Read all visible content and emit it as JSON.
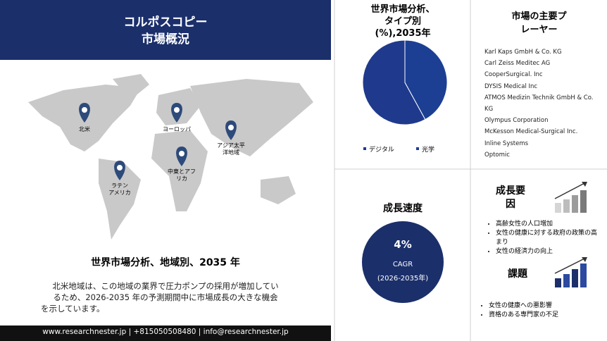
{
  "header": {
    "title": [
      "コルポスコピー",
      "市場概況"
    ]
  },
  "map": {
    "regions": [
      {
        "label": [
          "北米"
        ]
      },
      {
        "label": [
          "ヨーロッパ"
        ]
      },
      {
        "label": [
          "アジア太平",
          "洋地域"
        ]
      },
      {
        "label": [
          "中東とアフ",
          "リカ"
        ]
      },
      {
        "label": [
          "ラテン",
          "アメリカ"
        ]
      }
    ]
  },
  "regional": {
    "title": "世界市場分析、地域別、2035 年",
    "text": [
      "北米地域は、この地域の業界で圧力ポンプの採用が増加してい",
      "るため、2026-2035 年の予測期間中に市場成長の大きな機会",
      "を示しています。"
    ]
  },
  "footer": "www.researchnester.jp | +815050508480 | info@researchnester.jp",
  "chart_data": {
    "type": "pie",
    "title": [
      "世界市場分析、",
      "タイプ別",
      "(%),2035年"
    ],
    "categories": [
      "デジタル",
      "光学"
    ],
    "values": [
      58,
      42
    ],
    "colors": [
      "#1f3a8c",
      "#1c3f93"
    ]
  },
  "players": {
    "title": [
      "市場の主要プ",
      "レーヤー"
    ],
    "items": [
      "Karl Kaps GmbH & Co. KG",
      "Carl Zeiss Meditec AG",
      "CooperSurgical. Inc",
      "DYSIS Medical Inc",
      "ATMOS Medizin Technik GmbH & Co. KG",
      "Olympus Corporation",
      "McKesson Medical-Surgical Inc.",
      "Inline Systems",
      "Optomic"
    ]
  },
  "growth_rate": {
    "title": "成長速度",
    "value": "4%",
    "label": "CAGR",
    "period": "(2026-2035年)"
  },
  "drivers": {
    "title": [
      "成長要",
      "因"
    ],
    "items": [
      "高齢女性の人口増加",
      "女性の健康に対する政府の政策の高まり",
      "女性の経済力の向上"
    ]
  },
  "challenges": {
    "title": "課題",
    "items": [
      "女性の健康への悪影響",
      "資格のある専門家の不足"
    ]
  }
}
